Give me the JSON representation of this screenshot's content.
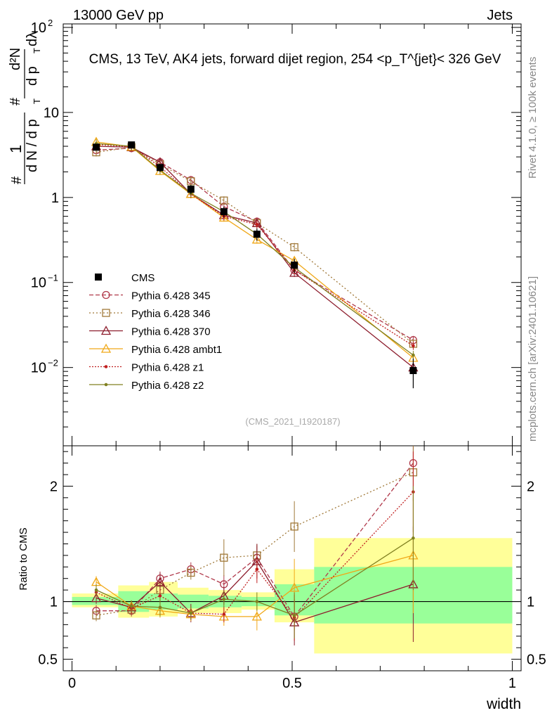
{
  "header": {
    "left": "13000 GeV pp",
    "right": "Jets"
  },
  "side": {
    "rivet": "Rivet 4.1.0, ≥ 100k events",
    "mcplots": "mcplots.cern.ch [arXiv:2401.10621]"
  },
  "chart_data": [
    {
      "type": "line",
      "panel": "main",
      "title": "CMS, 13 TeV, AK4 jets, forward dijet region, 254 <p_T^{jet}< 326 GeV",
      "ylabel": "1/dN/dp_T  d²N/dp_T dλ",
      "ylabel_parts": {
        "one": "1",
        "den": "d N / d p",
        "frac_num": "d²N",
        "frac_den": "d p",
        "dlam": "dλ",
        "sub": "T",
        "hash": "#"
      },
      "yscale": "log",
      "ylim": [
        0.0012,
        110
      ],
      "xlim": [
        -0.02,
        1.02
      ],
      "yticks": [
        {
          "v": 0.01,
          "label": "10",
          "exp": "−2"
        },
        {
          "v": 0.1,
          "label": "10",
          "exp": "−1"
        },
        {
          "v": 1,
          "label": "1",
          "exp": ""
        },
        {
          "v": 10,
          "label": "10",
          "exp": ""
        },
        {
          "v": 100,
          "label": "10",
          "exp": "2"
        }
      ],
      "watermark": "(CMS_2021_I1920187)",
      "x": [
        0.055,
        0.135,
        0.2,
        0.27,
        0.345,
        0.42,
        0.505,
        0.775
      ],
      "data": {
        "name": "CMS",
        "values": [
          3.9,
          4.15,
          2.25,
          1.25,
          0.68,
          0.37,
          0.16,
          0.0092
        ],
        "errors": [
          0.25,
          0.25,
          0.25,
          0.15,
          0.1,
          0.06,
          0.03,
          0.0035
        ]
      },
      "series": [
        {
          "name": "Pythia 6.428 345",
          "color": "#b0384a",
          "dash": "6,3",
          "marker": "circle",
          "values": [
            3.6,
            3.8,
            2.6,
            1.6,
            0.78,
            0.52,
            0.14,
            0.021
          ]
        },
        {
          "name": "Pythia 6.428 346",
          "color": "#a07838",
          "dash": "2,3",
          "marker": "square",
          "values": [
            3.4,
            3.9,
            2.45,
            1.55,
            0.92,
            0.5,
            0.26,
            0.019
          ]
        },
        {
          "name": "Pythia 6.428 370",
          "color": "#8c1c2c",
          "dash": "",
          "marker": "triangle",
          "values": [
            4.0,
            3.9,
            2.6,
            1.1,
            0.62,
            0.5,
            0.13,
            0.01
          ]
        },
        {
          "name": "Pythia 6.428 ambt1",
          "color": "#f0a818",
          "dash": "",
          "marker": "triangle",
          "values": [
            4.5,
            3.95,
            2.05,
            1.1,
            0.58,
            0.32,
            0.18,
            0.013
          ]
        },
        {
          "name": "Pythia 6.428 z1",
          "color": "#c02020",
          "dash": "2,2",
          "marker": "dot",
          "values": [
            4.2,
            3.95,
            2.3,
            1.1,
            0.6,
            0.48,
            0.14,
            0.018
          ]
        },
        {
          "name": "Pythia 6.428 z2",
          "color": "#808020",
          "dash": "",
          "marker": "dot",
          "values": [
            4.3,
            4.0,
            2.1,
            1.12,
            0.68,
            0.37,
            0.15,
            0.014
          ]
        }
      ]
    },
    {
      "type": "line",
      "panel": "ratio",
      "ylabel": "Ratio to CMS",
      "xlabel": "width",
      "ylim": [
        0.4,
        2.35
      ],
      "yticks": [
        {
          "v": 0.5,
          "label": "0.5"
        },
        {
          "v": 1,
          "label": "1"
        },
        {
          "v": 2,
          "label": "2"
        }
      ],
      "xticks": [
        {
          "v": 0,
          "label": "0"
        },
        {
          "v": 0.5,
          "label": "0.5"
        },
        {
          "v": 1,
          "label": "1"
        }
      ],
      "bands": [
        {
          "x0": 0.0,
          "x1": 0.105,
          "ylo": 0.95,
          "yhi": 1.07,
          "glo": 0.97,
          "ghi": 1.04
        },
        {
          "x0": 0.105,
          "x1": 0.175,
          "ylo": 0.86,
          "yhi": 1.14,
          "glo": 0.91,
          "ghi": 1.09
        },
        {
          "x0": 0.175,
          "x1": 0.24,
          "ylo": 0.87,
          "yhi": 1.17,
          "glo": 0.93,
          "ghi": 1.07
        },
        {
          "x0": 0.24,
          "x1": 0.31,
          "ylo": 0.9,
          "yhi": 1.12,
          "glo": 0.94,
          "ghi": 1.06
        },
        {
          "x0": 0.31,
          "x1": 0.385,
          "ylo": 0.9,
          "yhi": 1.1,
          "glo": 0.95,
          "ghi": 1.05
        },
        {
          "x0": 0.385,
          "x1": 0.46,
          "ylo": 0.93,
          "yhi": 1.08,
          "glo": 0.96,
          "ghi": 1.04
        },
        {
          "x0": 0.46,
          "x1": 0.55,
          "ylo": 0.82,
          "yhi": 1.28,
          "glo": 0.88,
          "ghi": 1.15
        },
        {
          "x0": 0.55,
          "x1": 1.0,
          "ylo": 0.55,
          "yhi": 1.55,
          "glo": 0.81,
          "ghi": 1.3
        }
      ],
      "series": [
        {
          "name": "Pythia 6.428 345",
          "values": [
            0.92,
            0.92,
            1.2,
            1.28,
            1.15,
            1.38,
            0.87,
            2.2
          ],
          "errors": [
            0.05,
            0.05,
            0.06,
            0.06,
            0.08,
            0.1,
            0.12,
            0.25
          ]
        },
        {
          "name": "Pythia 6.428 346",
          "values": [
            0.88,
            0.93,
            1.1,
            1.25,
            1.38,
            1.4,
            1.65,
            2.12
          ],
          "errors": [
            0.05,
            0.05,
            0.06,
            0.06,
            0.16,
            0.1,
            0.22,
            0.25
          ]
        },
        {
          "name": "Pythia 6.428 370",
          "values": [
            1.03,
            0.95,
            1.17,
            0.9,
            1.05,
            1.35,
            0.82,
            1.15
          ],
          "errors": [
            0.05,
            0.05,
            0.08,
            0.08,
            0.08,
            0.15,
            0.2,
            0.5
          ]
        },
        {
          "name": "Pythia 6.428 ambt1",
          "values": [
            1.17,
            0.96,
            0.92,
            0.89,
            0.87,
            0.87,
            1.12,
            1.4
          ],
          "errors": [
            0.05,
            0.05,
            0.06,
            0.06,
            0.08,
            0.12,
            0.25,
            0.5
          ]
        },
        {
          "name": "Pythia 6.428 z1",
          "values": [
            1.08,
            0.94,
            1.05,
            0.9,
            0.89,
            1.28,
            0.86,
            1.95
          ],
          "errors": [
            0.05,
            0.05,
            0.06,
            0.06,
            0.07,
            0.12,
            0.2,
            0.35
          ]
        },
        {
          "name": "Pythia 6.428 z2",
          "values": [
            1.1,
            0.96,
            0.95,
            0.9,
            1.02,
            1.0,
            0.88,
            1.55
          ],
          "errors": [
            0.05,
            0.05,
            0.08,
            0.06,
            0.07,
            0.08,
            0.2,
            0.45
          ]
        }
      ]
    }
  ],
  "legend": {
    "data_label": "CMS",
    "entries": [
      "Pythia 6.428 345",
      "Pythia 6.428 346",
      "Pythia 6.428 370",
      "Pythia 6.428 ambt1",
      "Pythia 6.428 z1",
      "Pythia 6.428 z2"
    ]
  }
}
